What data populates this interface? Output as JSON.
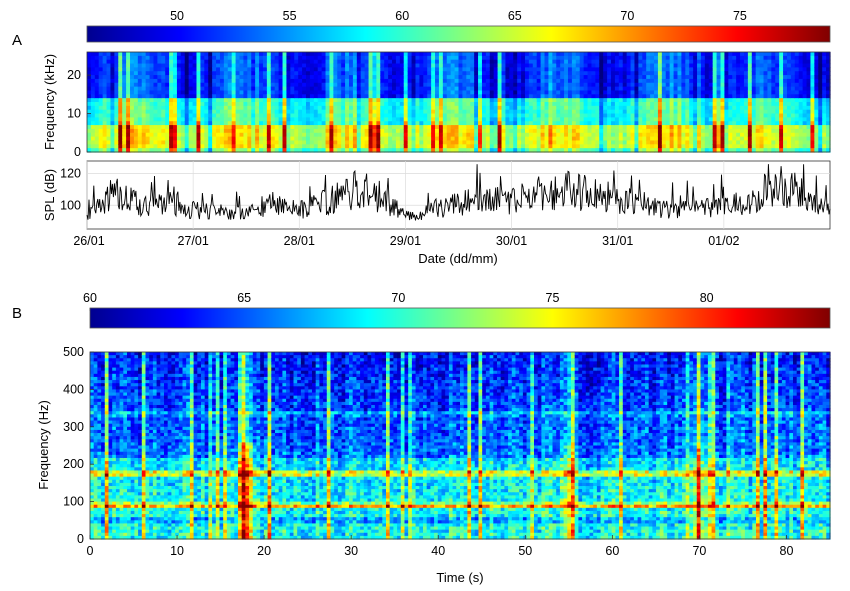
{
  "chart_data": [
    {
      "type": "heatmap",
      "panel": "A",
      "colorbar_ticks": [
        "50",
        "55",
        "60",
        "65",
        "70",
        "75"
      ],
      "clim": [
        46,
        79
      ],
      "ylabel": "Frequency (kHz)",
      "ylim": [
        0,
        26
      ],
      "yticks": [
        "0",
        "10",
        "20"
      ],
      "xlim": [
        0,
        7
      ],
      "bands": [
        {
          "f_from": 0,
          "f_to": 1.5,
          "base": 62
        },
        {
          "f_from": 1.5,
          "f_to": 7,
          "base": 66
        },
        {
          "f_from": 7,
          "f_to": 14,
          "base": 60
        },
        {
          "f_from": 14,
          "f_to": 26,
          "base": 52
        }
      ]
    },
    {
      "type": "line",
      "ylabel": "SPL (dB)",
      "xlabel": "Date (dd/mm)",
      "categories": [
        "26/01",
        "27/01",
        "28/01",
        "29/01",
        "30/01",
        "31/01",
        "01/02"
      ],
      "ylim": [
        85,
        128
      ],
      "yticks": [
        "100",
        "120"
      ],
      "grid": true,
      "series": [
        {
          "x": [
            0,
            0.25,
            0.5,
            0.75,
            1,
            1.25,
            1.5,
            1.75,
            2,
            2.25,
            2.5,
            2.75,
            3,
            3.25,
            3.5,
            3.75,
            4,
            4.25,
            4.5,
            4.75,
            5,
            5.25,
            5.5,
            5.75,
            6,
            6.25,
            6.5,
            6.75,
            7
          ],
          "values": [
            92,
            108,
            100,
            104,
            97,
            96,
            94,
            103,
            97,
            102,
            110,
            106,
            93,
            97,
            101,
            104,
            102,
            108,
            110,
            107,
            104,
            101,
            97,
            100,
            99,
            104,
            112,
            108,
            95
          ]
        }
      ]
    },
    {
      "type": "heatmap",
      "panel": "B",
      "colorbar_ticks": [
        "60",
        "65",
        "70",
        "75",
        "80"
      ],
      "clim": [
        60,
        84
      ],
      "xlabel": "Time (s)",
      "ylabel": "Frequency (Hz)",
      "xlim": [
        0,
        85
      ],
      "xticks": [
        "0",
        "10",
        "20",
        "30",
        "40",
        "50",
        "60",
        "70",
        "80"
      ],
      "ylim": [
        0,
        500
      ],
      "yticks": [
        "0",
        "100",
        "200",
        "300",
        "400",
        "500"
      ],
      "tonal_lines_hz": [
        90,
        175,
        335
      ],
      "hotspot_s": [
        18,
        55,
        70
      ]
    }
  ],
  "labels": {
    "panel_a": "A",
    "panel_b": "B"
  }
}
